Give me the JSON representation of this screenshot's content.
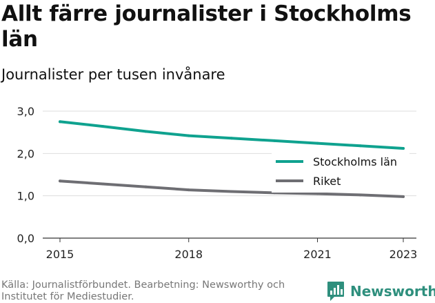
{
  "title": "Allt färre journalister i Stockholms län",
  "subtitle": "Journalister per tusen invånare",
  "source": "Källa: Journalistförbundet. Bearbetning: Newsworthy och Institutet för Mediestudier.",
  "brand": {
    "name": "Newsworthy",
    "logo_icon": "newsworthy-logo-icon"
  },
  "colors": {
    "stockholm": "#0fa28f",
    "riket": "#6e6e73",
    "grid": "#dddddd",
    "brand": "#2e8f7d"
  },
  "chart_data": {
    "type": "line",
    "title": "Allt färre journalister i Stockholms län",
    "subtitle": "Journalister per tusen invånare",
    "xlabel": "",
    "ylabel": "",
    "x_ticks": [
      2015,
      2018,
      2021,
      2023
    ],
    "y_ticks": [
      0,
      1,
      2,
      3
    ],
    "y_tick_labels": [
      "0,0",
      "1,0",
      "2,0",
      "3,0"
    ],
    "xlim": [
      2015,
      2023
    ],
    "ylim": [
      0,
      3
    ],
    "grid": "horizontal",
    "legend_position": "right",
    "series": [
      {
        "name": "Stockholms län",
        "color": "#0fa28f",
        "x": [
          2015,
          2016,
          2017,
          2018,
          2019,
          2020,
          2021,
          2022,
          2023
        ],
        "y": [
          2.75,
          2.64,
          2.52,
          2.42,
          2.36,
          2.3,
          2.24,
          2.18,
          2.12
        ]
      },
      {
        "name": "Riket",
        "color": "#6e6e73",
        "x": [
          2015,
          2016,
          2017,
          2018,
          2019,
          2020,
          2021,
          2022,
          2023
        ],
        "y": [
          1.35,
          1.28,
          1.21,
          1.14,
          1.1,
          1.07,
          1.05,
          1.02,
          0.98
        ]
      }
    ]
  }
}
